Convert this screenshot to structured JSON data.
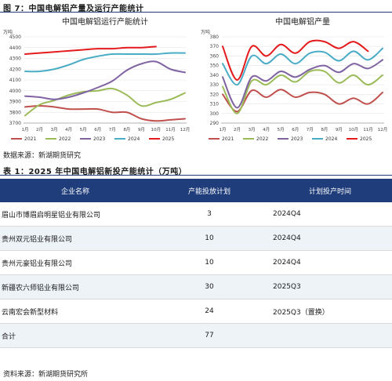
{
  "figure_caption": "图 7：中国电解铝产量及运行产能统计",
  "chart_data": [
    {
      "type": "line",
      "title": "中国电解铝运行产能统计",
      "ylabel": "万吨",
      "categories": [
        "1月",
        "2月",
        "3月",
        "4月",
        "5月",
        "6月",
        "7月",
        "8月",
        "9月",
        "10月",
        "11月",
        "12月"
      ],
      "ylim": [
        3700,
        4500
      ],
      "yticks": [
        3700,
        3800,
        3900,
        4000,
        4100,
        4200,
        4300,
        4400,
        4500
      ],
      "series": [
        {
          "name": "2021",
          "color": "#c0504d",
          "values": [
            3850,
            3860,
            3850,
            3830,
            3830,
            3830,
            3800,
            3800,
            3740,
            3720,
            3730,
            3740
          ]
        },
        {
          "name": "2022",
          "color": "#9bbb59",
          "values": [
            3770,
            3870,
            3910,
            3960,
            3990,
            4000,
            4020,
            3960,
            3860,
            3890,
            3920,
            3980
          ]
        },
        {
          "name": "2023",
          "color": "#8064a2",
          "values": [
            3950,
            3940,
            3920,
            3940,
            3980,
            4030,
            4090,
            4190,
            4250,
            4270,
            4200,
            4170
          ]
        },
        {
          "name": "2024",
          "color": "#4bacc6",
          "values": [
            4180,
            4180,
            4200,
            4240,
            4290,
            4320,
            4340,
            4340,
            4340,
            4340,
            4350,
            4350
          ]
        },
        {
          "name": "2025",
          "color": "#e41a1c",
          "values": [
            4340,
            4350,
            4360,
            4370,
            4380,
            4390,
            4390,
            4400,
            4400,
            4410,
            null,
            null
          ]
        }
      ]
    },
    {
      "type": "line",
      "title": "中国电解铝产量",
      "ylabel": "万吨",
      "categories": [
        "1月",
        "2月",
        "3月",
        "4月",
        "5月",
        "6月",
        "7月",
        "8月",
        "9月",
        "10月",
        "11月",
        "12月"
      ],
      "ylim": [
        290,
        380
      ],
      "yticks": [
        290,
        300,
        310,
        320,
        330,
        340,
        350,
        360,
        370,
        380
      ],
      "series": [
        {
          "name": "2021",
          "color": "#c0504d",
          "values": [
            320,
            302,
            324,
            317,
            325,
            317,
            322,
            320,
            310,
            316,
            310,
            322
          ]
        },
        {
          "name": "2022",
          "color": "#9bbb59",
          "values": [
            328,
            300,
            334,
            330,
            340,
            333,
            344,
            344,
            332,
            340,
            330,
            340
          ]
        },
        {
          "name": "2023",
          "color": "#8064a2",
          "values": [
            338,
            306,
            338,
            334,
            344,
            338,
            346,
            350,
            343,
            352,
            347,
            356
          ]
        },
        {
          "name": "2024",
          "color": "#4bacc6",
          "values": [
            352,
            330,
            360,
            352,
            362,
            352,
            363,
            364,
            355,
            365,
            356,
            368
          ]
        },
        {
          "name": "2025",
          "color": "#e41a1c",
          "values": [
            370,
            335,
            370,
            360,
            372,
            363,
            375,
            375,
            368,
            375,
            365,
            null
          ]
        }
      ]
    }
  ],
  "chart_source": "数据来源：新湖期货研究",
  "table_caption": "表 1：2025 年中国电解铝新投产能统计（万吨）",
  "table": {
    "headers": [
      "企业名称",
      "产能投放计划",
      "计划投产时间"
    ],
    "rows": [
      [
        "眉山市博眉启明星铝业有限公司",
        "3",
        "2024Q4"
      ],
      [
        "贵州双元铝业有限公司",
        "10",
        "2024Q4"
      ],
      [
        "贵州元豪铝业有限公司",
        "10",
        "2024Q4"
      ],
      [
        "新疆农六师铝业有限公司",
        "30",
        "2025Q3"
      ],
      [
        "云南宏会新型材料",
        "24",
        "2025Q3（置换）"
      ],
      [
        "合计",
        "77",
        ""
      ]
    ]
  },
  "table_source": "资料来源：新湖期货研究所"
}
